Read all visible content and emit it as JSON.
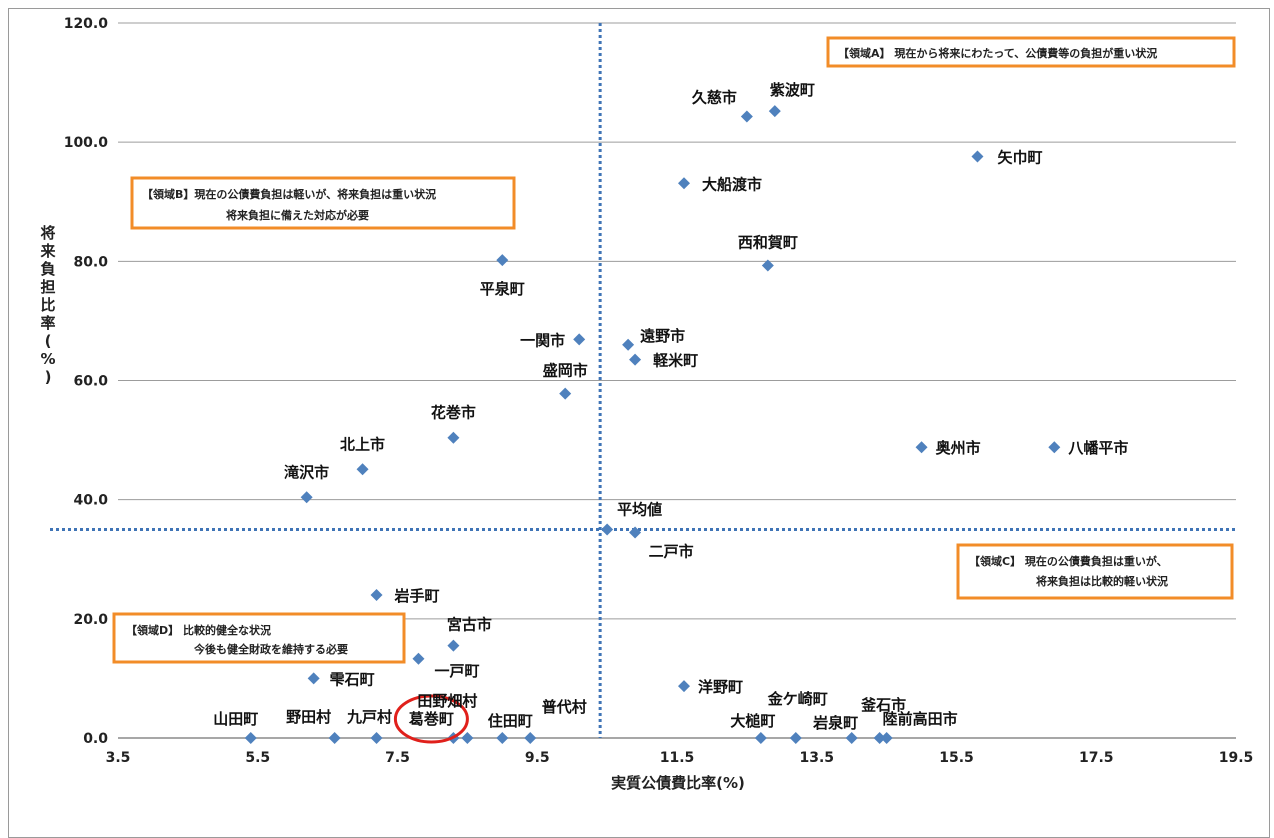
{
  "chart_data": {
    "type": "scatter",
    "xlabel": "実質公債費比率(%)",
    "ylabel": "将来負担比率(%)",
    "xlim": [
      3.5,
      19.5
    ],
    "ylim": [
      0,
      120
    ],
    "xticks": [
      3.5,
      5.5,
      7.5,
      9.5,
      11.5,
      13.5,
      15.5,
      17.5,
      19.5
    ],
    "yticks": [
      0,
      20,
      40,
      60,
      80,
      100,
      120
    ],
    "xtick_labels": [
      "3.5",
      "5.5",
      "7.5",
      "9.5",
      "11.5",
      "13.5",
      "15.5",
      "17.5",
      "19.5"
    ],
    "ytick_labels": [
      "0.0",
      "20.0",
      "40.0",
      "60.0",
      "80.0",
      "100.0",
      "120.0"
    ],
    "grid": "horizontal",
    "marker_color": "#4f81bd",
    "reference_lines": {
      "x": 10.4,
      "y": 35.0,
      "color": "#3f74b6",
      "style": "dotted"
    },
    "highlight": {
      "label": "葛巻町",
      "color": "#e0201b"
    },
    "points": [
      {
        "label": "久慈市",
        "x": 12.5,
        "y": 104.3
      },
      {
        "label": "紫波町",
        "x": 12.9,
        "y": 105.2
      },
      {
        "label": "矢巾町",
        "x": 15.8,
        "y": 97.6
      },
      {
        "label": "大船渡市",
        "x": 11.6,
        "y": 93.1
      },
      {
        "label": "西和賀町",
        "x": 12.8,
        "y": 79.3
      },
      {
        "label": "平泉町",
        "x": 9.0,
        "y": 80.2
      },
      {
        "label": "一関市",
        "x": 10.1,
        "y": 66.9
      },
      {
        "label": "遠野市",
        "x": 10.8,
        "y": 66.0
      },
      {
        "label": "軽米町",
        "x": 10.9,
        "y": 63.5
      },
      {
        "label": "盛岡市",
        "x": 9.9,
        "y": 57.8
      },
      {
        "label": "花巻市",
        "x": 8.3,
        "y": 50.4
      },
      {
        "label": "奥州市",
        "x": 15.0,
        "y": 48.8
      },
      {
        "label": "八幡平市",
        "x": 16.9,
        "y": 48.8
      },
      {
        "label": "北上市",
        "x": 7.0,
        "y": 45.1
      },
      {
        "label": "滝沢市",
        "x": 6.2,
        "y": 40.4
      },
      {
        "label": "平均値",
        "x": 10.5,
        "y": 35.0
      },
      {
        "label": "二戸市",
        "x": 10.9,
        "y": 34.5
      },
      {
        "label": "岩手町",
        "x": 7.2,
        "y": 24.0
      },
      {
        "label": "宮古市",
        "x": 8.3,
        "y": 15.5
      },
      {
        "label": "一戸町",
        "x": 7.8,
        "y": 13.3
      },
      {
        "label": "雫石町",
        "x": 6.3,
        "y": 10.0
      },
      {
        "label": "洋野町",
        "x": 11.6,
        "y": 8.7
      },
      {
        "label": "山田町",
        "x": 5.4,
        "y": 0.0
      },
      {
        "label": "野田村",
        "x": 6.6,
        "y": 0.0
      },
      {
        "label": "九戸村",
        "x": 7.2,
        "y": 0.0
      },
      {
        "label": "葛巻町",
        "x": 8.3,
        "y": 0.0
      },
      {
        "label": "田野畑村",
        "x": 8.5,
        "y": 0.0
      },
      {
        "label": "住田町",
        "x": 9.0,
        "y": 0.0
      },
      {
        "label": "普代村",
        "x": 9.4,
        "y": 0.0
      },
      {
        "label": "大槌町",
        "x": 12.7,
        "y": 0.0
      },
      {
        "label": "金ケ崎町",
        "x": 13.2,
        "y": 0.0
      },
      {
        "label": "岩泉町",
        "x": 14.0,
        "y": 0.0
      },
      {
        "label": "釜石市",
        "x": 14.4,
        "y": 0.0
      },
      {
        "label": "陸前高田市",
        "x": 14.5,
        "y": 0.0
      }
    ],
    "annotations": [
      {
        "id": "A",
        "lines": [
          "【領域A】 現在から将来にわたって、公債費等の負担が重い状況"
        ]
      },
      {
        "id": "B",
        "lines": [
          "【領域B】現在の公債費負担は軽いが、将来負担は重い状況",
          "将来負担に備えた対応が必要"
        ]
      },
      {
        "id": "C",
        "lines": [
          "【領域C】 現在の公債費負担は重いが、",
          "将来負担は比較的軽い状況"
        ]
      },
      {
        "id": "D",
        "lines": [
          "【領域D】 比較的健全な状況",
          "今後も健全財政を維持する必要"
        ]
      }
    ],
    "annotation_color": "#f28c28"
  }
}
